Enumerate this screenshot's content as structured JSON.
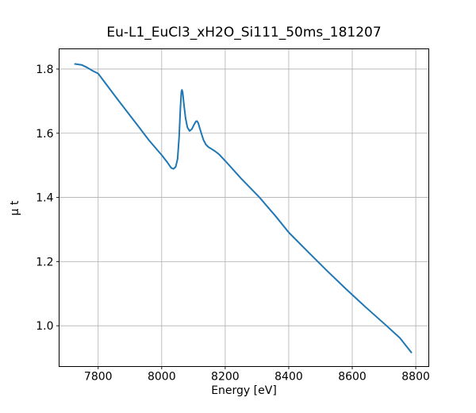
{
  "figure": {
    "background": "#ffffff"
  },
  "chart_data": {
    "type": "line",
    "title": "Eu-L1_EuCl3_xH2O_Si111_50ms_181207",
    "xlabel": "Energy [eV]",
    "ylabel": "μ t",
    "xlim": [
      7677,
      8841
    ],
    "ylim": [
      0.873,
      1.863
    ],
    "xticks": [
      7800,
      8000,
      8200,
      8400,
      8600,
      8800
    ],
    "yticks": [
      1.0,
      1.2,
      1.4,
      1.6,
      1.8
    ],
    "grid": true,
    "legend": false,
    "colors": {
      "line": "#1f77b4",
      "grid": "#b0b0b0",
      "axes": "#000000",
      "background": "#ffffff"
    },
    "series": [
      {
        "x": [
          7727,
          7748,
          7765,
          7782,
          7800,
          7860,
          7920,
          7960,
          8000,
          8018,
          8030,
          8037,
          8044,
          8050,
          8055,
          8059,
          8062,
          8064,
          8066,
          8070,
          8075,
          8081,
          8088,
          8095,
          8102,
          8108,
          8111,
          8115,
          8120,
          8126,
          8132,
          8139,
          8147,
          8157,
          8168,
          8180,
          8200,
          8250,
          8308,
          8360,
          8400,
          8460,
          8520,
          8580,
          8640,
          8708,
          8750,
          8786
        ],
        "y": [
          1.816,
          1.813,
          1.805,
          1.795,
          1.786,
          1.707,
          1.63,
          1.578,
          1.532,
          1.509,
          1.492,
          1.489,
          1.495,
          1.52,
          1.59,
          1.68,
          1.73,
          1.735,
          1.728,
          1.69,
          1.648,
          1.618,
          1.607,
          1.613,
          1.627,
          1.637,
          1.638,
          1.632,
          1.615,
          1.596,
          1.578,
          1.565,
          1.557,
          1.551,
          1.544,
          1.535,
          1.514,
          1.459,
          1.4,
          1.34,
          1.291,
          1.231,
          1.172,
          1.115,
          1.06,
          1.0,
          0.962,
          0.917
        ]
      }
    ]
  }
}
